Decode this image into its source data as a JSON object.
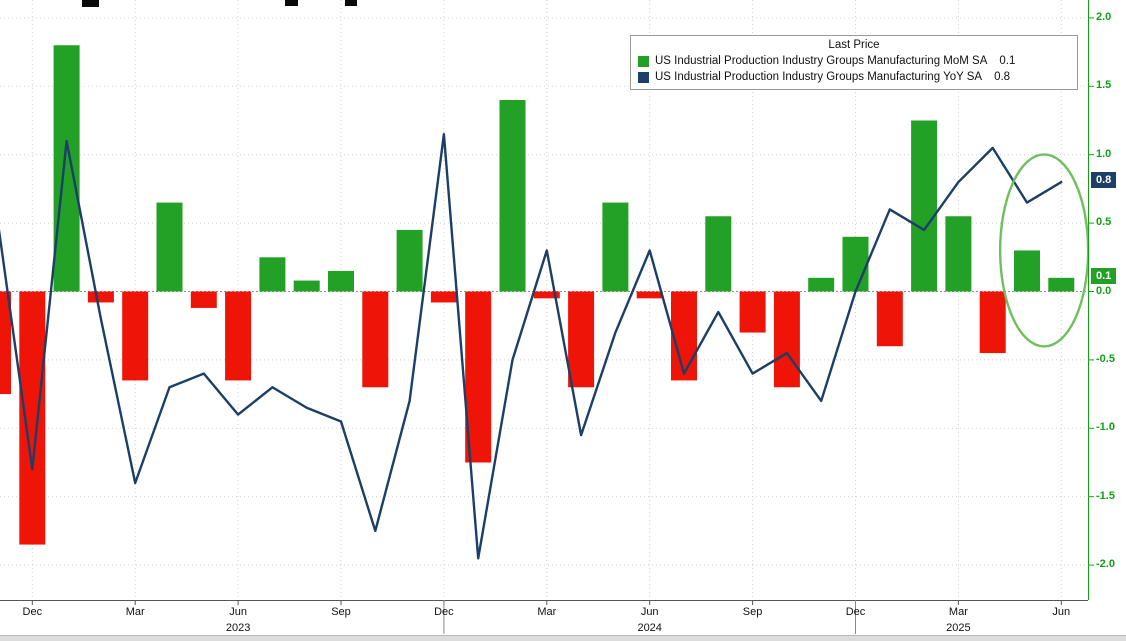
{
  "legend": {
    "title": "Last Price",
    "series": [
      {
        "label": "US Industrial Production Industry Groups Manufacturing MoM SA",
        "value": "0.1"
      },
      {
        "label": "US Industrial Production Industry Groups Manufacturing YoY SA",
        "value": "0.8"
      }
    ]
  },
  "colors": {
    "mom_positive": "#23a127",
    "mom_negative": "#ee1408",
    "yoy_line": "#1b3f66",
    "axis_text": "#12a112",
    "grid": "#cfcfcf",
    "zero_line": "#909090",
    "annotation": "#6fbf5f"
  },
  "chart_data": {
    "type": "mixed",
    "x": [
      "Nov 2022",
      "Dec 2022",
      "Jan 2023",
      "Feb 2023",
      "Mar 2023",
      "Apr 2023",
      "May 2023",
      "Jun 2023",
      "Jul 2023",
      "Aug 2023",
      "Sep 2023",
      "Oct 2023",
      "Nov 2023",
      "Dec 2023",
      "Jan 2024",
      "Feb 2024",
      "Mar 2024",
      "Apr 2024",
      "May 2024",
      "Jun 2024",
      "Jul 2024",
      "Aug 2024",
      "Sep 2024",
      "Oct 2024",
      "Nov 2024",
      "Dec 2024",
      "Jan 2025",
      "Feb 2025",
      "Mar 2025",
      "Apr 2025",
      "May 2025",
      "Jun 2025"
    ],
    "series": [
      {
        "name": "US Industrial Production Industry Groups Manufacturing MoM SA",
        "chart_type": "bar",
        "last_value": 0.1,
        "values": [
          -0.75,
          -1.85,
          1.8,
          -0.08,
          -0.65,
          0.65,
          -0.12,
          -0.65,
          0.25,
          0.08,
          0.15,
          -0.7,
          0.45,
          -0.08,
          -1.25,
          1.4,
          -0.05,
          -0.7,
          0.65,
          -0.05,
          -0.65,
          0.55,
          -0.3,
          -0.7,
          0.1,
          0.4,
          -0.4,
          1.25,
          0.55,
          -0.45,
          0.3,
          0.1
        ]
      },
      {
        "name": "US Industrial Production Industry Groups Manufacturing YoY SA",
        "chart_type": "line",
        "last_value": 0.8,
        "values": [
          0.5,
          -1.3,
          1.1,
          -0.2,
          -1.4,
          -0.7,
          -0.6,
          -0.9,
          -0.7,
          -0.85,
          -0.95,
          -1.75,
          -0.8,
          1.15,
          -1.95,
          -0.5,
          0.3,
          -1.05,
          -0.3,
          0.3,
          -0.6,
          -0.15,
          -0.6,
          -0.45,
          -0.8,
          0.0,
          0.6,
          0.45,
          0.8,
          1.05,
          0.65,
          0.8
        ]
      }
    ],
    "ylim": [
      -2.0,
      2.0
    ],
    "grid": true,
    "legend_position": "top-right",
    "y_ticks": [
      {
        "v": 2.0,
        "label": "2.0"
      },
      {
        "v": 1.5,
        "label": "1.5"
      },
      {
        "v": 1.0,
        "label": "1.0"
      },
      {
        "v": 0.5,
        "label": "0.5"
      },
      {
        "v": 0.0,
        "label": "0.0"
      },
      {
        "v": -0.5,
        "label": "-0.5"
      },
      {
        "v": -1.0,
        "label": "-1.0"
      },
      {
        "v": -1.5,
        "label": "-1.5"
      },
      {
        "v": -2.0,
        "label": "-2.0"
      }
    ],
    "x_ticks": [
      {
        "index": 1,
        "label": "Dec"
      },
      {
        "index": 4,
        "label": "Mar"
      },
      {
        "index": 7,
        "label": "Jun"
      },
      {
        "index": 10,
        "label": "Sep"
      },
      {
        "index": 13,
        "label": "Dec"
      },
      {
        "index": 16,
        "label": "Mar"
      },
      {
        "index": 19,
        "label": "Jun"
      },
      {
        "index": 22,
        "label": "Sep"
      },
      {
        "index": 25,
        "label": "Dec"
      },
      {
        "index": 28,
        "label": "Mar"
      },
      {
        "index": 31,
        "label": "Jun"
      }
    ],
    "year_labels": [
      {
        "index": 7,
        "label": "2023"
      },
      {
        "index": 19,
        "label": "2024"
      },
      {
        "index": 28,
        "label": "2025"
      }
    ],
    "year_separator_indices": [
      13,
      25
    ],
    "value_badges": [
      {
        "label": "0.8",
        "v": 0.8,
        "series": "yoy"
      },
      {
        "label": "0.1",
        "v": 0.1,
        "series": "mom"
      }
    ],
    "annotation": {
      "shape": "ellipse",
      "center_index": 30.5,
      "center_value": 0.3,
      "note": "circles latest MoM bars and YoY line end"
    }
  }
}
